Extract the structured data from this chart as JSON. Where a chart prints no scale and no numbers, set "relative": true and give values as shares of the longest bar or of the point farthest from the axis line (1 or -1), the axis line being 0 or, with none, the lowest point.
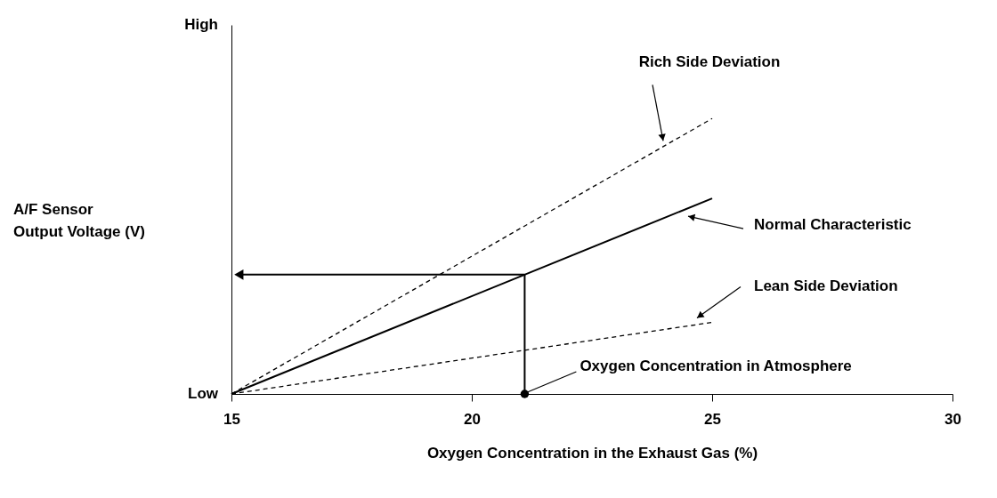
{
  "chart_data": {
    "type": "line",
    "relative": true,
    "xlabel": "Oxygen Concentration in the Exhaust Gas (%)",
    "x": [
      15,
      25
    ],
    "xlim": [
      15,
      30
    ],
    "xticks": [
      15,
      20,
      25,
      30
    ],
    "grid": false,
    "marker": "none",
    "series": [
      {
        "name": "Rich Side Deviation",
        "color": "#000000",
        "line_style": "dashed",
        "values": [
          0,
          1
        ]
      },
      {
        "name": "Normal Characteristic",
        "color": "#000000",
        "line_style": "solid",
        "values": [
          0,
          0.71
        ]
      },
      {
        "name": "Lean Side Deviation",
        "color": "#000000",
        "line_style": "dashed",
        "values": [
          0,
          0.26
        ]
      }
    ],
    "annotations": [
      "High",
      "Low",
      "A/F Sensor\nOutput Voltage (V)",
      {
        "text": "Oxygen Concentration in Atmosphere",
        "x": 21.1,
        "y": 0
      }
    ]
  }
}
